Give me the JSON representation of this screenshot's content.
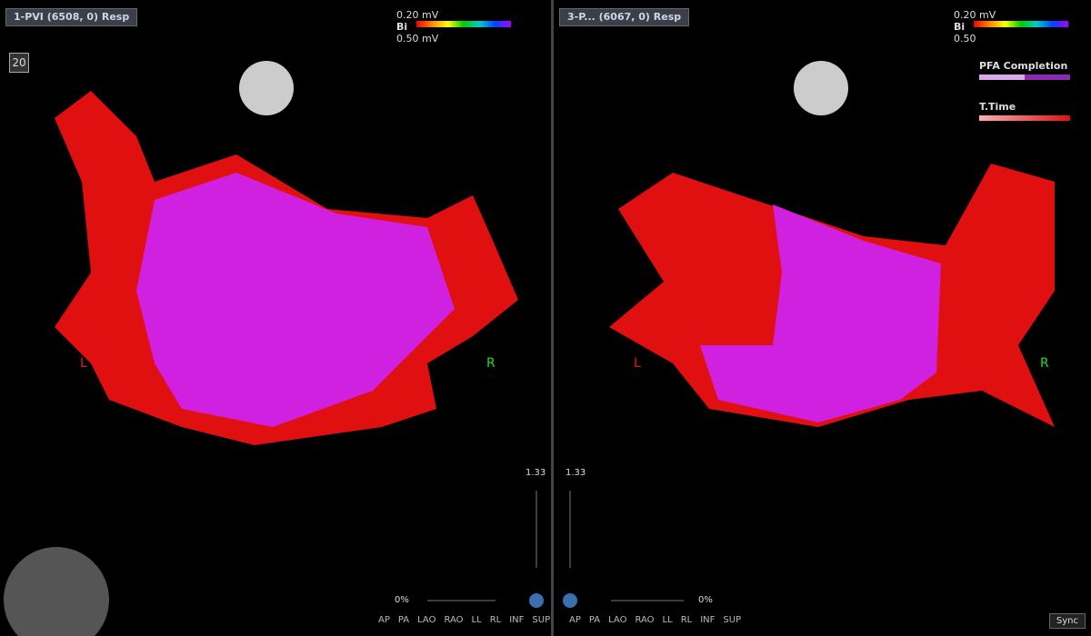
{
  "panels": [
    {
      "title": "1-PVI (6508, 0) Resp",
      "scale_min": "0.20 mV",
      "scale_name": "Bi",
      "scale_max": "0.50 mV",
      "preset": "20",
      "left_label": "L",
      "right_label": "R",
      "zoom": "1.33",
      "opacity": "0%",
      "views": [
        "AP",
        "PA",
        "LAO",
        "RAO",
        "LL",
        "RL",
        "INF",
        "SUP"
      ]
    },
    {
      "title": "3-P... (6067, 0) Resp",
      "scale_min": "0.20 mV",
      "scale_name": "Bi",
      "scale_max": "0.50",
      "left_label": "L",
      "right_label": "R",
      "zoom": "1.33",
      "opacity": "0%",
      "views": [
        "AP",
        "PA",
        "LAO",
        "RAO",
        "LL",
        "RL",
        "INF",
        "SUP"
      ]
    }
  ],
  "legend": [
    {
      "label": "PFA Completion"
    },
    {
      "label": "T.Time"
    }
  ],
  "sync": "Sync"
}
